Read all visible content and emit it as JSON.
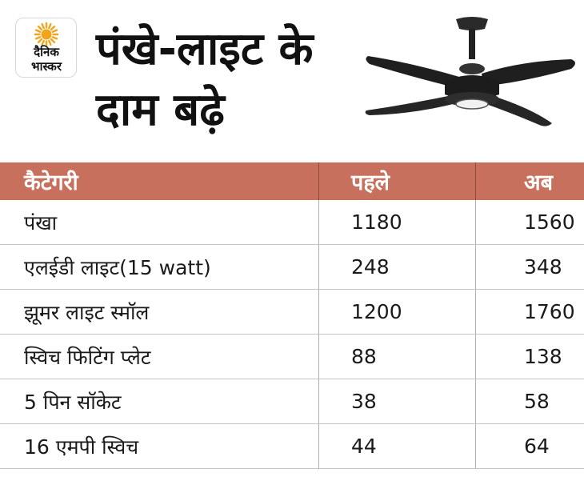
{
  "logo": {
    "line1": "दैनिक",
    "line2": "भास्कर",
    "sun_color": "#f2a51c"
  },
  "headline": {
    "line1": "पंखे-लाइट के",
    "line2": "दाम बढ़े"
  },
  "table": {
    "header_color": "#c8705e",
    "columns": [
      "कैटेगरी",
      "पहले",
      "अब"
    ],
    "rows": [
      {
        "category": "पंखा",
        "before": "1180",
        "now": "1560"
      },
      {
        "category": "एलईडी लाइट(15 watt)",
        "before": "248",
        "now": "348"
      },
      {
        "category": "झूमर लाइट स्मॉल",
        "before": "1200",
        "now": "1760"
      },
      {
        "category": "स्विच फिटिंग प्लेट",
        "before": "88",
        "now": "138"
      },
      {
        "category": "5 पिन सॉकेट",
        "before": "38",
        "now": "58"
      },
      {
        "category": "16 एमपी स्विच",
        "before": "44",
        "now": "64"
      }
    ]
  }
}
